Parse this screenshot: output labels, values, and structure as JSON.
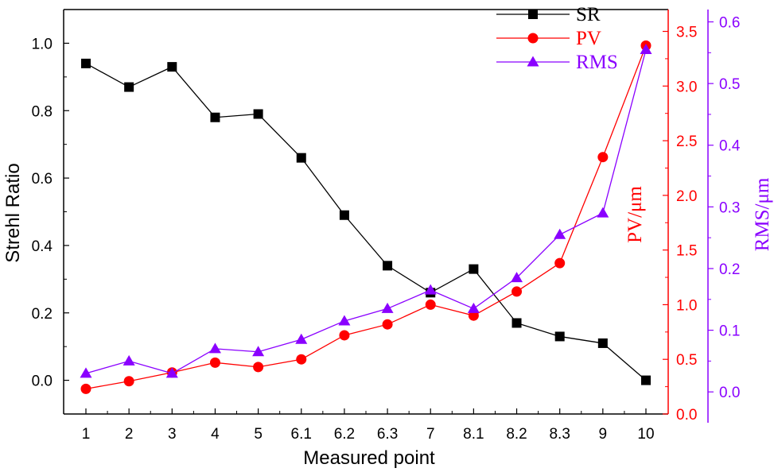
{
  "chart_data": {
    "type": "line",
    "categories": [
      "1",
      "2",
      "3",
      "4",
      "5",
      "6.1",
      "6.2",
      "6.3",
      "7",
      "8.1",
      "8.2",
      "8.3",
      "9",
      "10"
    ],
    "xlabel": "Measured point",
    "axes": {
      "left": {
        "label": "Strehl Ratio",
        "ylim": [
          -0.1,
          1.1
        ],
        "ticks": [
          "0.0",
          "0.2",
          "0.4",
          "0.6",
          "0.8",
          "1.0"
        ],
        "color": "#000000"
      },
      "right1": {
        "label": "PV/μm",
        "ylim": [
          0.0,
          3.7
        ],
        "ticks": [
          "0.0",
          "0.5",
          "1.0",
          "1.5",
          "2.0",
          "2.5",
          "3.0",
          "3.5"
        ],
        "color": "#ff0000"
      },
      "right2": {
        "label": "RMS/μm",
        "ylim": [
          -0.05,
          0.62
        ],
        "ticks": [
          "0.0",
          "0.1",
          "0.2",
          "0.3",
          "0.4",
          "0.5",
          "0.6"
        ],
        "color": "#8a00ff"
      }
    },
    "series": [
      {
        "name": "SR",
        "axis": "left",
        "marker": "square",
        "color": "#000000",
        "values": [
          0.94,
          0.87,
          0.93,
          0.78,
          0.79,
          0.66,
          0.49,
          0.34,
          0.26,
          0.33,
          0.17,
          0.13,
          0.11,
          0.0
        ]
      },
      {
        "name": "PV",
        "axis": "right1",
        "marker": "circle",
        "color": "#ff0000",
        "values": [
          0.23,
          0.3,
          0.38,
          0.47,
          0.43,
          0.5,
          0.72,
          0.82,
          1.0,
          0.9,
          1.12,
          1.38,
          2.35,
          3.37
        ]
      },
      {
        "name": "RMS",
        "axis": "right2",
        "marker": "triangle",
        "color": "#8a00ff",
        "values": [
          0.03,
          0.05,
          0.03,
          0.07,
          0.065,
          0.085,
          0.115,
          0.135,
          0.165,
          0.135,
          0.185,
          0.255,
          0.29,
          0.555
        ]
      }
    ],
    "legend": {
      "position": "top-right",
      "entries": [
        "SR",
        "PV",
        "RMS"
      ]
    },
    "grid": false
  }
}
